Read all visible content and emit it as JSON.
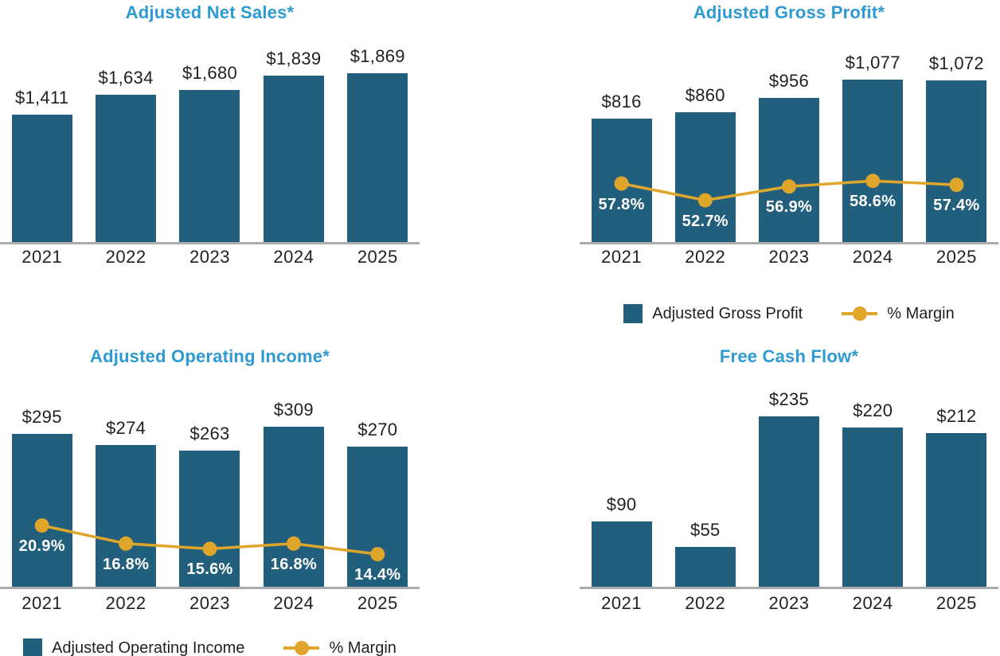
{
  "colors": {
    "bar": "#215F7D",
    "line": "#E0A62B",
    "title": "#2E9AD3",
    "axis": "#ABACAE",
    "text": "#231F20",
    "pct_text": "#FFFFFF"
  },
  "chart_data": [
    {
      "id": "adjusted-net-sales",
      "type": "bar",
      "title": "Adjusted Net Sales*",
      "categories": [
        "2021",
        "2022",
        "2023",
        "2024",
        "2025"
      ],
      "values": [
        1411,
        1634,
        1680,
        1839,
        1869
      ],
      "value_labels": [
        "$1,411",
        "$1,634",
        "$1,680",
        "$1,839",
        "$1,869"
      ],
      "ylim": [
        0,
        2292
      ],
      "grid": false,
      "legend": null
    },
    {
      "id": "adjusted-gross-profit",
      "type": "bar+line",
      "title": "Adjusted Gross Profit*",
      "categories": [
        "2021",
        "2022",
        "2023",
        "2024",
        "2025"
      ],
      "values": [
        816,
        860,
        956,
        1077,
        1072
      ],
      "value_labels": [
        "$816",
        "$860",
        "$956",
        "$1,077",
        "$1,072"
      ],
      "ylim": [
        0,
        1373
      ],
      "grid": false,
      "line": {
        "name": "% Margin",
        "values": [
          57.8,
          52.7,
          56.9,
          58.6,
          57.4
        ],
        "labels": [
          "57.8%",
          "52.7%",
          "56.9%",
          "58.6%",
          "57.4%"
        ],
        "ylim": [
          40,
          103
        ]
      },
      "legend": {
        "position": "bottom",
        "bar_label": "Adjusted Gross Profit",
        "line_label": "% Margin"
      }
    },
    {
      "id": "adjusted-operating-income",
      "type": "bar+line",
      "title": "Adjusted Operating Income*",
      "categories": [
        "2021",
        "2022",
        "2023",
        "2024",
        "2025"
      ],
      "values": [
        295,
        274,
        263,
        309,
        270
      ],
      "value_labels": [
        "$295",
        "$274",
        "$263",
        "$309",
        "$270"
      ],
      "ylim": [
        0,
        400
      ],
      "grid": false,
      "line": {
        "name": "% Margin",
        "values": [
          20.9,
          16.8,
          15.6,
          16.8,
          14.4
        ],
        "labels": [
          "20.9%",
          "16.8%",
          "15.6%",
          "16.8%",
          "14.4%"
        ],
        "ylim": [
          7,
          54
        ]
      },
      "legend": {
        "position": "bottom",
        "bar_label": "Adjusted Operating Income",
        "line_label": "% Margin"
      }
    },
    {
      "id": "free-cash-flow",
      "type": "bar",
      "title": "Free Cash Flow*",
      "categories": [
        "2021",
        "2022",
        "2023",
        "2024",
        "2025"
      ],
      "values": [
        90,
        55,
        235,
        220,
        212
      ],
      "value_labels": [
        "$90",
        "$55",
        "$235",
        "$220",
        "$212"
      ],
      "ylim": [
        0,
        286
      ],
      "grid": false,
      "legend": null
    }
  ]
}
